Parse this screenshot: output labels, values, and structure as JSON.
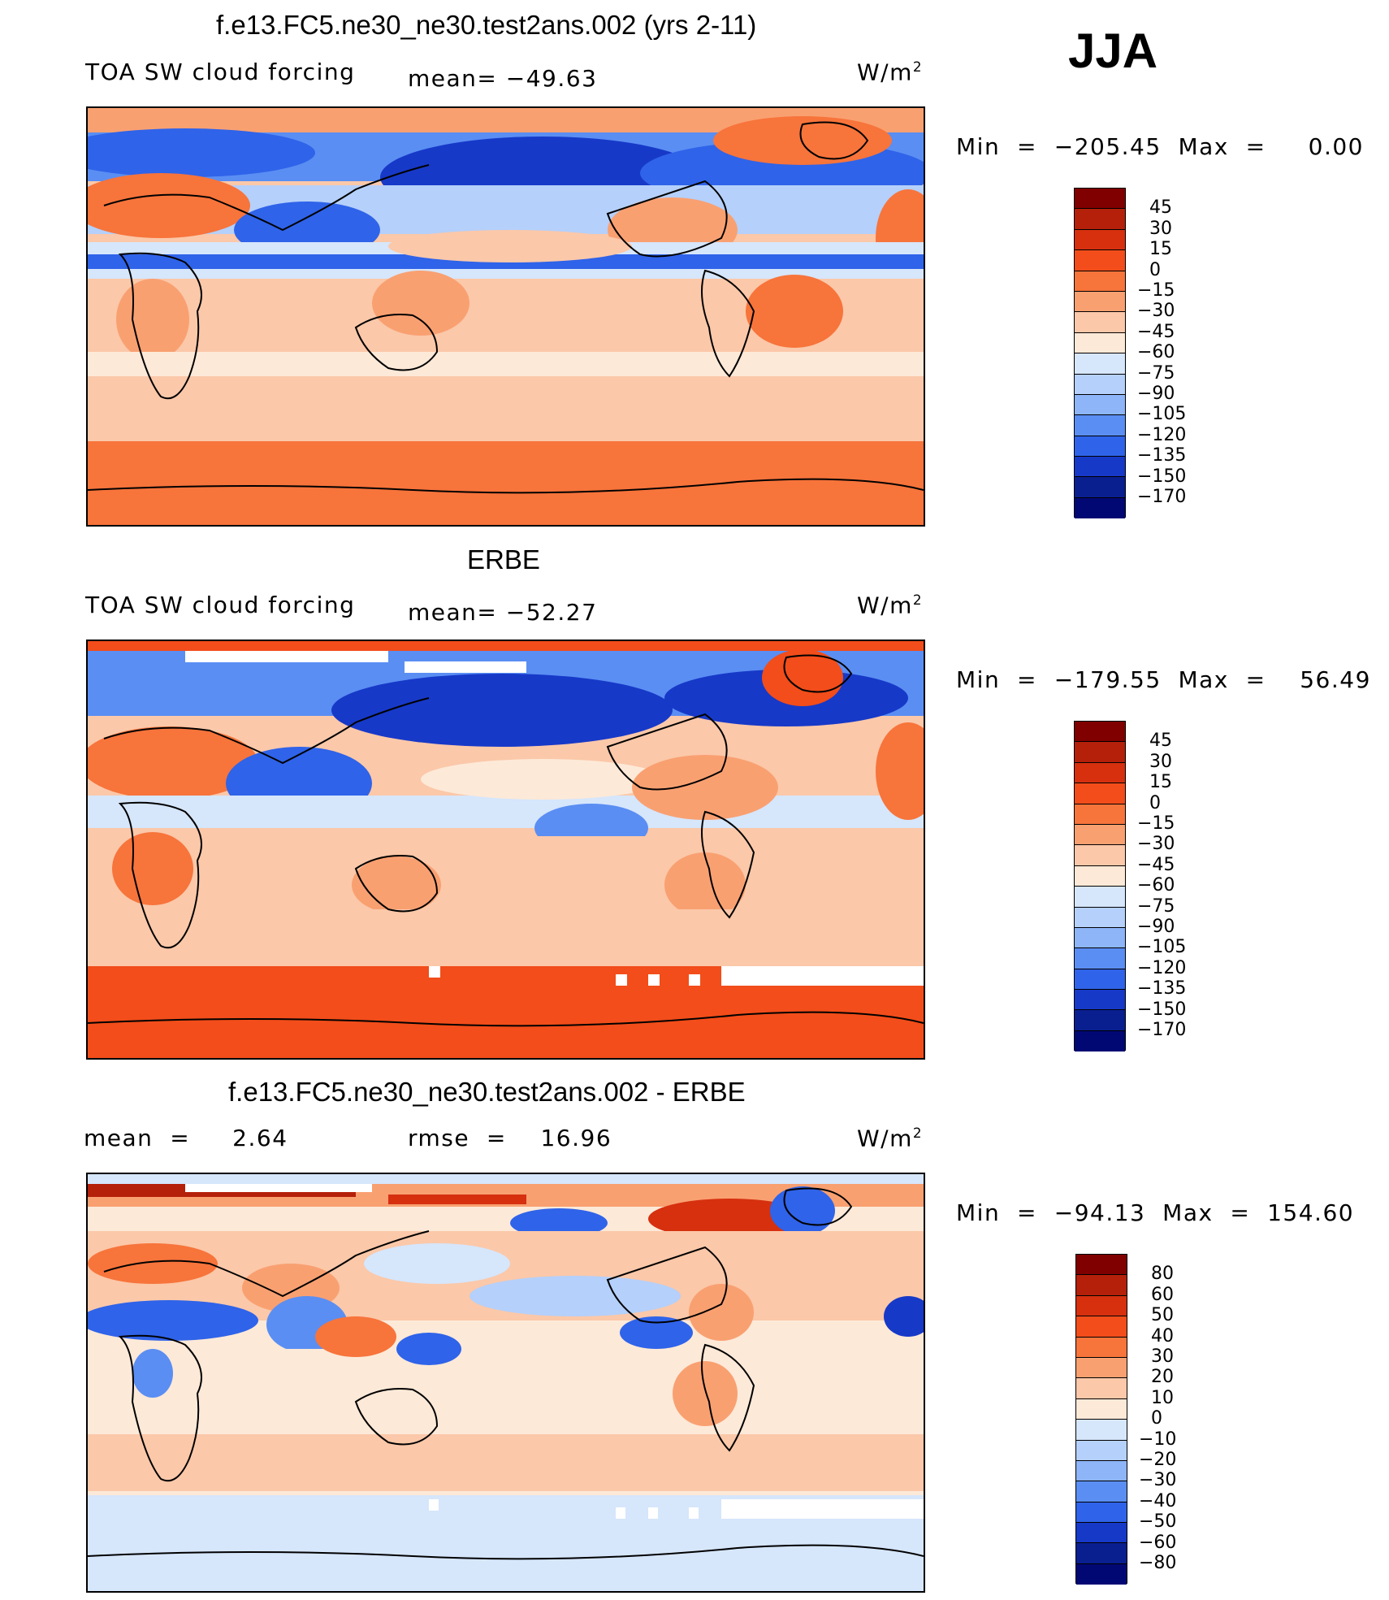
{
  "season": "JJA",
  "panels": [
    {
      "id": "model",
      "title": "f.e13.FC5.ne30_ne30.test2ans.002 (yrs 2-11)",
      "left_label": "TOA SW cloud forcing",
      "mid_label": "mean= −49.63",
      "units_base": "W/m",
      "units_exp": "2",
      "minmax": "Min  =  −205.45  Max  =     0.00",
      "min": -205.45,
      "max": 0.0,
      "mean": -49.63,
      "legend_levels": [
        "45",
        "30",
        "15",
        "0",
        "−15",
        "−30",
        "−45",
        "−60",
        "−75",
        "−90",
        "−105",
        "−120",
        "−135",
        "−150",
        "−170"
      ],
      "legend_colors": [
        "#800000",
        "#b4200a",
        "#d6300f",
        "#f24d1a",
        "#f7743b",
        "#f9a071",
        "#fbc8a9",
        "#fde9d8",
        "#d6e6fb",
        "#b5d0fa",
        "#8db5f7",
        "#5a8ef3",
        "#2f63e9",
        "#1739c8",
        "#0a1f8f",
        "#020873"
      ]
    },
    {
      "id": "obs",
      "title": "ERBE",
      "left_label": "TOA SW cloud forcing",
      "mid_label": "mean= −52.27",
      "units_base": "W/m",
      "units_exp": "2",
      "minmax": "Min  =  −179.55  Max  =    56.49",
      "min": -179.55,
      "max": 56.49,
      "mean": -52.27,
      "legend_levels": [
        "45",
        "30",
        "15",
        "0",
        "−15",
        "−30",
        "−45",
        "−60",
        "−75",
        "−90",
        "−105",
        "−120",
        "−135",
        "−150",
        "−170"
      ],
      "legend_colors": [
        "#800000",
        "#b4200a",
        "#d6300f",
        "#f24d1a",
        "#f7743b",
        "#f9a071",
        "#fbc8a9",
        "#fde9d8",
        "#d6e6fb",
        "#b5d0fa",
        "#8db5f7",
        "#5a8ef3",
        "#2f63e9",
        "#1739c8",
        "#0a1f8f",
        "#020873"
      ]
    },
    {
      "id": "diff",
      "title": "f.e13.FC5.ne30_ne30.test2ans.002 - ERBE",
      "left_label": "mean  =     2.64",
      "mid_label": "rmse  =    16.96",
      "units_base": "W/m",
      "units_exp": "2",
      "minmax": "Min  =  −94.13  Max  =  154.60",
      "min": -94.13,
      "max": 154.6,
      "mean": 2.64,
      "rmse": 16.96,
      "legend_levels": [
        "80",
        "60",
        "50",
        "40",
        "30",
        "20",
        "10",
        "0",
        "−10",
        "−20",
        "−30",
        "−40",
        "−50",
        "−60",
        "−80"
      ],
      "legend_colors": [
        "#800000",
        "#b4200a",
        "#d6300f",
        "#f24d1a",
        "#f7743b",
        "#f9a071",
        "#fbc8a9",
        "#fde9d8",
        "#d6e6fb",
        "#b5d0fa",
        "#8db5f7",
        "#5a8ef3",
        "#2f63e9",
        "#1739c8",
        "#0a1f8f",
        "#020873"
      ]
    }
  ]
}
